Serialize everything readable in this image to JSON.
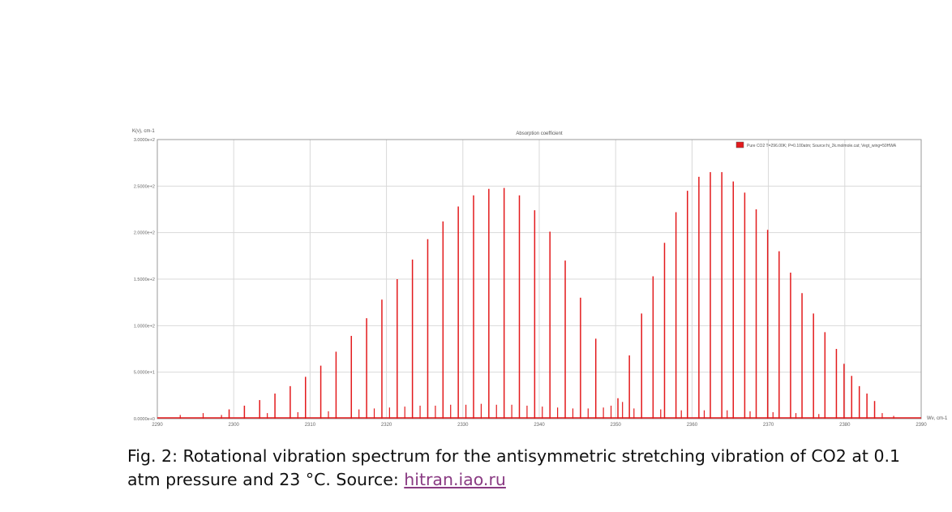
{
  "chart_data": {
    "type": "line",
    "title": "Absorption coefficient",
    "ylabel": "K(ν), cm-1",
    "xlabel": "Wν, cm-1",
    "legend": {
      "label": "Pure CO2 T=296.00K; P=0.100atm; Source:hi_2k.molmole.cat; Vegt_wing=50HWA",
      "placement": "top-right",
      "color": "#e31a1c"
    },
    "series_color": "#e31a1c",
    "grid": true,
    "xlim": [
      2290,
      2390
    ],
    "ylim": [
      0,
      300
    ],
    "x_ticks": [
      "2290",
      "2300",
      "2310",
      "2320",
      "2330",
      "2340",
      "2350",
      "2360",
      "2370",
      "2380",
      "2390"
    ],
    "y_ticks": [
      "0.0000e+0",
      "5.0000e+1",
      "1.0000e+2",
      "1.5000e+2",
      "2.0000e+2",
      "2.5000e+2",
      "3.0000e+2"
    ],
    "major_lines": {
      "x": [
        2299.4,
        2301.4,
        2303.4,
        2305.4,
        2307.4,
        2309.4,
        2311.4,
        2313.4,
        2315.4,
        2317.4,
        2319.4,
        2321.4,
        2323.4,
        2325.4,
        2327.4,
        2329.4,
        2331.4,
        2333.4,
        2335.4,
        2337.4,
        2339.4,
        2341.4,
        2343.4,
        2345.4,
        2347.4,
        2350.3,
        2351.8,
        2353.4,
        2354.9,
        2356.4,
        2357.9,
        2359.4,
        2360.9,
        2362.4,
        2363.9,
        2365.4,
        2366.9,
        2368.4,
        2369.9,
        2371.4,
        2372.9,
        2374.4,
        2375.9,
        2377.4,
        2378.9,
        2379.9,
        2380.9,
        2381.9,
        2382.9,
        2383.9
      ],
      "y": [
        10,
        14,
        20,
        27,
        35,
        45,
        57,
        72,
        89,
        108,
        128,
        150,
        171,
        193,
        212,
        228,
        240,
        247,
        248,
        240,
        224,
        201,
        170,
        130,
        86,
        22,
        68,
        113,
        153,
        189,
        222,
        245,
        260,
        265,
        265,
        255,
        243,
        225,
        203,
        180,
        157,
        135,
        113,
        93,
        75,
        59,
        46,
        35,
        27,
        19
      ]
    },
    "weak_lines": {
      "x": [
        2293,
        2296,
        2298.4,
        2304.4,
        2308.4,
        2312.4,
        2316.4,
        2318.4,
        2320.4,
        2322.4,
        2324.4,
        2326.4,
        2328.4,
        2330.4,
        2332.4,
        2334.4,
        2336.4,
        2338.4,
        2340.4,
        2342.4,
        2344.4,
        2346.4,
        2348.4,
        2349.4,
        2350.9,
        2352.4,
        2355.9,
        2358.6,
        2361.6,
        2364.6,
        2367.6,
        2370.6,
        2373.6,
        2376.6,
        2384.9,
        2386.4
      ],
      "y": [
        4,
        6,
        4,
        6,
        7,
        8,
        10,
        11,
        12,
        13,
        14,
        14,
        15,
        15,
        16,
        15,
        15,
        14,
        13,
        12,
        11,
        11,
        12,
        14,
        18,
        11,
        10,
        9,
        9,
        9,
        8,
        7,
        6,
        5,
        6,
        3
      ]
    }
  },
  "caption": {
    "text": "Fig. 2: Rotational vibration spectrum for the antisymmetric stretching vibration of CO2 at 0.1 atm pressure and 23 °C. Source: ",
    "link_text": "hitran.iao.ru"
  }
}
